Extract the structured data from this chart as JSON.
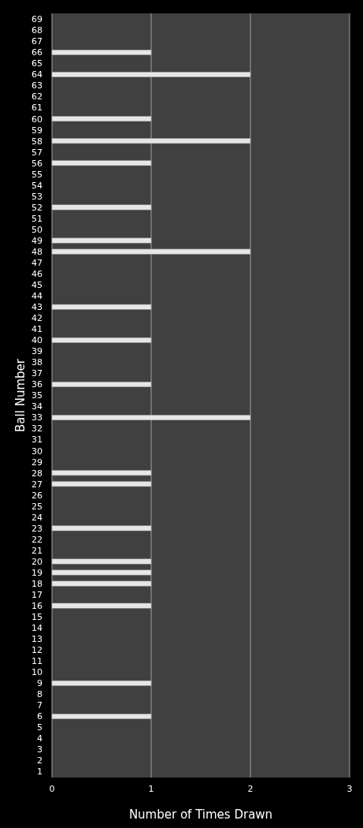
{
  "chart_data": {
    "type": "bar",
    "orientation": "horizontal",
    "xlabel": "Number of Times Drawn",
    "ylabel": "Ball Number",
    "categories": [
      "69",
      "68",
      "67",
      "66",
      "65",
      "64",
      "63",
      "62",
      "61",
      "60",
      "59",
      "58",
      "57",
      "56",
      "55",
      "54",
      "53",
      "52",
      "51",
      "50",
      "49",
      "48",
      "47",
      "46",
      "45",
      "44",
      "43",
      "42",
      "41",
      "40",
      "39",
      "38",
      "37",
      "36",
      "35",
      "34",
      "33",
      "32",
      "31",
      "30",
      "29",
      "28",
      "27",
      "26",
      "25",
      "24",
      "23",
      "22",
      "21",
      "20",
      "19",
      "18",
      "17",
      "16",
      "15",
      "14",
      "13",
      "12",
      "11",
      "10",
      "9",
      "8",
      "7",
      "6",
      "5",
      "4",
      "3",
      "2",
      "1"
    ],
    "values": [
      0,
      0,
      0,
      1,
      0,
      2,
      0,
      0,
      0,
      1,
      0,
      2,
      0,
      1,
      0,
      0,
      0,
      1,
      0,
      0,
      1,
      2,
      0,
      0,
      0,
      0,
      1,
      0,
      0,
      1,
      0,
      0,
      0,
      1,
      0,
      0,
      2,
      0,
      0,
      0,
      0,
      1,
      1,
      0,
      0,
      0,
      1,
      0,
      0,
      1,
      1,
      1,
      0,
      1,
      0,
      0,
      0,
      0,
      0,
      0,
      1,
      0,
      0,
      1,
      0,
      0,
      0,
      0,
      0
    ],
    "color": "#e6e6e6",
    "xlim": [
      0,
      3
    ],
    "xticks": [
      0,
      1,
      2,
      3
    ],
    "grid": "x"
  }
}
